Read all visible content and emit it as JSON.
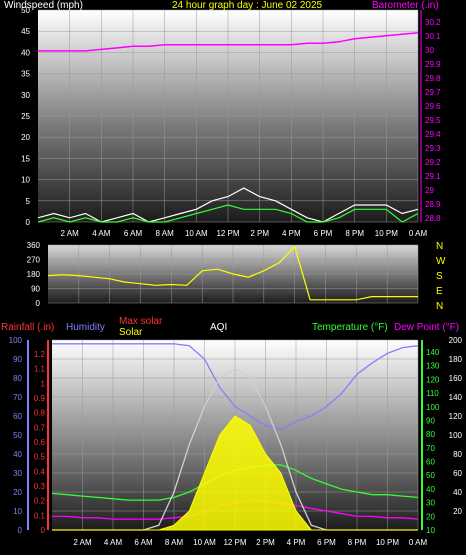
{
  "colors": {
    "background": "#000000",
    "title": "#ffff00",
    "wind_axis": "#ffffff",
    "barometer": "#ff00ff",
    "wind_dir": "#ffff00",
    "rainfall": "#ff3333",
    "humidity": "#8080ff",
    "max_solar": "#ff3333",
    "solar": "#ffff00",
    "aqi": "#ffffff",
    "temperature": "#33ff33",
    "dew_point": "#ff00ff",
    "compass": "#ffff00"
  },
  "chart_data": [
    {
      "type": "line",
      "title": "24 hour graph day : June 02 2025",
      "ylabel_left": "Windspeed (mph)",
      "ylabel_right": "Barometer (.in)",
      "x_ticks": [
        "2 AM",
        "4 AM",
        "6 AM",
        "8 AM",
        "10 AM",
        "12 PM",
        "2 PM",
        "4 PM",
        "6 PM",
        "8 PM",
        "10 PM",
        "0 AM"
      ],
      "y_left_ticks": [
        "50",
        "45",
        "40",
        "35",
        "30",
        "25",
        "20",
        "15",
        "10",
        "5",
        "0"
      ],
      "y_right_ticks": [
        "30.2",
        "30.1",
        "30",
        "29.9",
        "29.8",
        "29.7",
        "29.6",
        "29.5",
        "29.4",
        "29.3",
        "29.2",
        "29.1",
        "29",
        "28.9",
        "28.8"
      ],
      "ylim_left": [
        0,
        50
      ],
      "ylim_right": [
        28.8,
        30.2
      ],
      "x_hours": [
        0,
        1,
        2,
        3,
        4,
        5,
        6,
        7,
        8,
        9,
        10,
        11,
        12,
        13,
        14,
        15,
        16,
        17,
        18,
        19,
        20,
        21,
        22,
        23,
        24
      ],
      "series": [
        {
          "name": "Barometer",
          "axis": "right",
          "values": [
            29.93,
            29.93,
            29.93,
            29.93,
            29.94,
            29.95,
            29.96,
            29.96,
            29.97,
            29.97,
            29.97,
            29.97,
            29.97,
            29.97,
            29.97,
            29.97,
            29.97,
            29.98,
            29.98,
            29.99,
            30.01,
            30.02,
            30.03,
            30.04,
            30.05
          ]
        },
        {
          "name": "Wind gust",
          "axis": "left",
          "values": [
            1,
            2,
            1,
            2,
            0,
            1,
            2,
            0,
            1,
            2,
            3,
            5,
            6,
            8,
            6,
            5,
            3,
            1,
            0,
            2,
            4,
            4,
            4,
            2,
            3
          ]
        },
        {
          "name": "Wind speed",
          "axis": "left",
          "values": [
            0,
            1,
            0,
            1,
            0,
            0,
            1,
            0,
            0,
            1,
            2,
            3,
            4,
            3,
            3,
            3,
            2,
            0,
            0,
            1,
            3,
            3,
            3,
            0,
            2
          ]
        }
      ]
    },
    {
      "type": "scatter",
      "series_name": "Wind direction",
      "y_ticks": [
        "360",
        "270",
        "180",
        "90",
        "0"
      ],
      "ylim": [
        0,
        360
      ],
      "compass_labels": [
        "N",
        "W",
        "S",
        "E",
        "N"
      ],
      "x_hours": [
        0,
        1,
        2,
        3,
        4,
        5,
        6,
        7,
        8,
        9,
        10,
        11,
        12,
        13,
        14,
        15,
        16,
        17,
        18,
        19,
        20,
        21,
        22,
        23,
        24
      ],
      "values": [
        170,
        175,
        170,
        160,
        150,
        130,
        120,
        110,
        115,
        110,
        200,
        210,
        180,
        160,
        200,
        250,
        350,
        20,
        20,
        20,
        20,
        40,
        40,
        40,
        40
      ]
    },
    {
      "type": "line",
      "ylabel_rain": "Rainfall (.in)",
      "legend": [
        "Humidity",
        "Max solar",
        "Solar",
        "AQI",
        "Temperature (°F)",
        "Dew Point (°F)"
      ],
      "y_humidity_ticks": [
        "100",
        "90",
        "80",
        "70",
        "60",
        "50",
        "40",
        "30",
        "20",
        "10",
        "0"
      ],
      "y_rain_ticks": [
        "1.2",
        "1.1",
        "1",
        "0.9",
        "0.8",
        "0.7",
        "0.6",
        "0.5",
        "0.4",
        "0.3",
        "0.2",
        "0.1",
        "0"
      ],
      "y_temp_ticks": [
        "140",
        "130",
        "120",
        "110",
        "100",
        "90",
        "80",
        "70",
        "60",
        "50",
        "40",
        "30",
        "20",
        "10"
      ],
      "y_solar_ticks": [
        "200",
        "180",
        "160",
        "140",
        "120",
        "100",
        "80",
        "60",
        "40",
        "20"
      ],
      "x_ticks": [
        "2 AM",
        "4 AM",
        "6 AM",
        "8 AM",
        "10 AM",
        "12 PM",
        "2 PM",
        "4 PM",
        "6 PM",
        "8 PM",
        "10 PM",
        "0 AM"
      ],
      "x_hours": [
        0,
        1,
        2,
        3,
        4,
        5,
        6,
        7,
        8,
        9,
        10,
        11,
        12,
        13,
        14,
        15,
        16,
        17,
        18,
        19,
        20,
        21,
        22,
        23,
        24
      ],
      "series": [
        {
          "name": "Humidity",
          "axis": "humidity",
          "values": [
            98,
            98,
            98,
            98,
            98,
            98,
            98,
            98,
            98,
            97,
            90,
            75,
            65,
            60,
            55,
            53,
            57,
            60,
            65,
            72,
            82,
            88,
            93,
            96,
            97
          ]
        },
        {
          "name": "Temperature (°F)",
          "axis": "temperature",
          "values": [
            37,
            36,
            35,
            34,
            33,
            32,
            32,
            32,
            34,
            38,
            44,
            50,
            54,
            56,
            58,
            58,
            54,
            48,
            44,
            40,
            38,
            36,
            36,
            35,
            34
          ]
        },
        {
          "name": "Dew Point (°F)",
          "axis": "temperature",
          "values": [
            20,
            20,
            19,
            19,
            18,
            18,
            18,
            18,
            19,
            20,
            24,
            28,
            30,
            32,
            31,
            30,
            28,
            26,
            24,
            22,
            20,
            20,
            19,
            19,
            18
          ]
        },
        {
          "name": "Max solar",
          "axis": "solar",
          "values": [
            0,
            0,
            0,
            0,
            0,
            0,
            0,
            5,
            40,
            90,
            130,
            160,
            170,
            160,
            130,
            90,
            40,
            5,
            0,
            0,
            0,
            0,
            0,
            0,
            0
          ]
        },
        {
          "name": "Solar",
          "axis": "solar",
          "values": [
            0,
            0,
            0,
            0,
            0,
            0,
            0,
            0,
            5,
            20,
            60,
            100,
            120,
            110,
            80,
            60,
            20,
            0,
            0,
            0,
            0,
            0,
            0,
            0,
            0
          ]
        }
      ]
    }
  ]
}
